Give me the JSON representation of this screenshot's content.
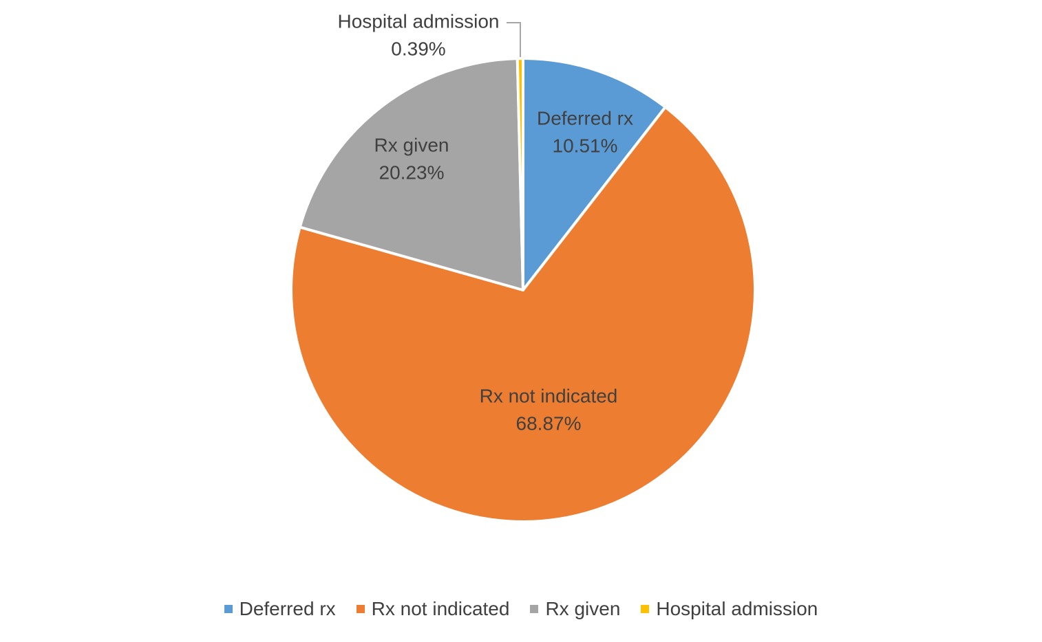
{
  "chart_data": {
    "type": "pie",
    "title": "",
    "slices": [
      {
        "label": "Deferred rx",
        "value": 10.51,
        "display": "10.51%",
        "color": "#5B9BD5"
      },
      {
        "label": "Rx not indicated",
        "value": 68.87,
        "display": "68.87%",
        "color": "#ED7D31"
      },
      {
        "label": "Rx given",
        "value": 20.23,
        "display": "20.23%",
        "color": "#A5A5A5"
      },
      {
        "label": "Hospital admission",
        "value": 0.39,
        "display": "0.39%",
        "color": "#FFC000"
      }
    ],
    "start_angle_deg": 0,
    "direction": "clockwise",
    "slice_border_color": "#FFFFFF",
    "label_color": "#404040",
    "legend_position": "bottom"
  },
  "legend": {
    "items": [
      {
        "label": "Deferred rx",
        "color": "#5B9BD5"
      },
      {
        "label": "Rx not indicated",
        "color": "#ED7D31"
      },
      {
        "label": "Rx given",
        "color": "#A5A5A5"
      },
      {
        "label": "Hospital admission",
        "color": "#FFC000"
      }
    ]
  }
}
